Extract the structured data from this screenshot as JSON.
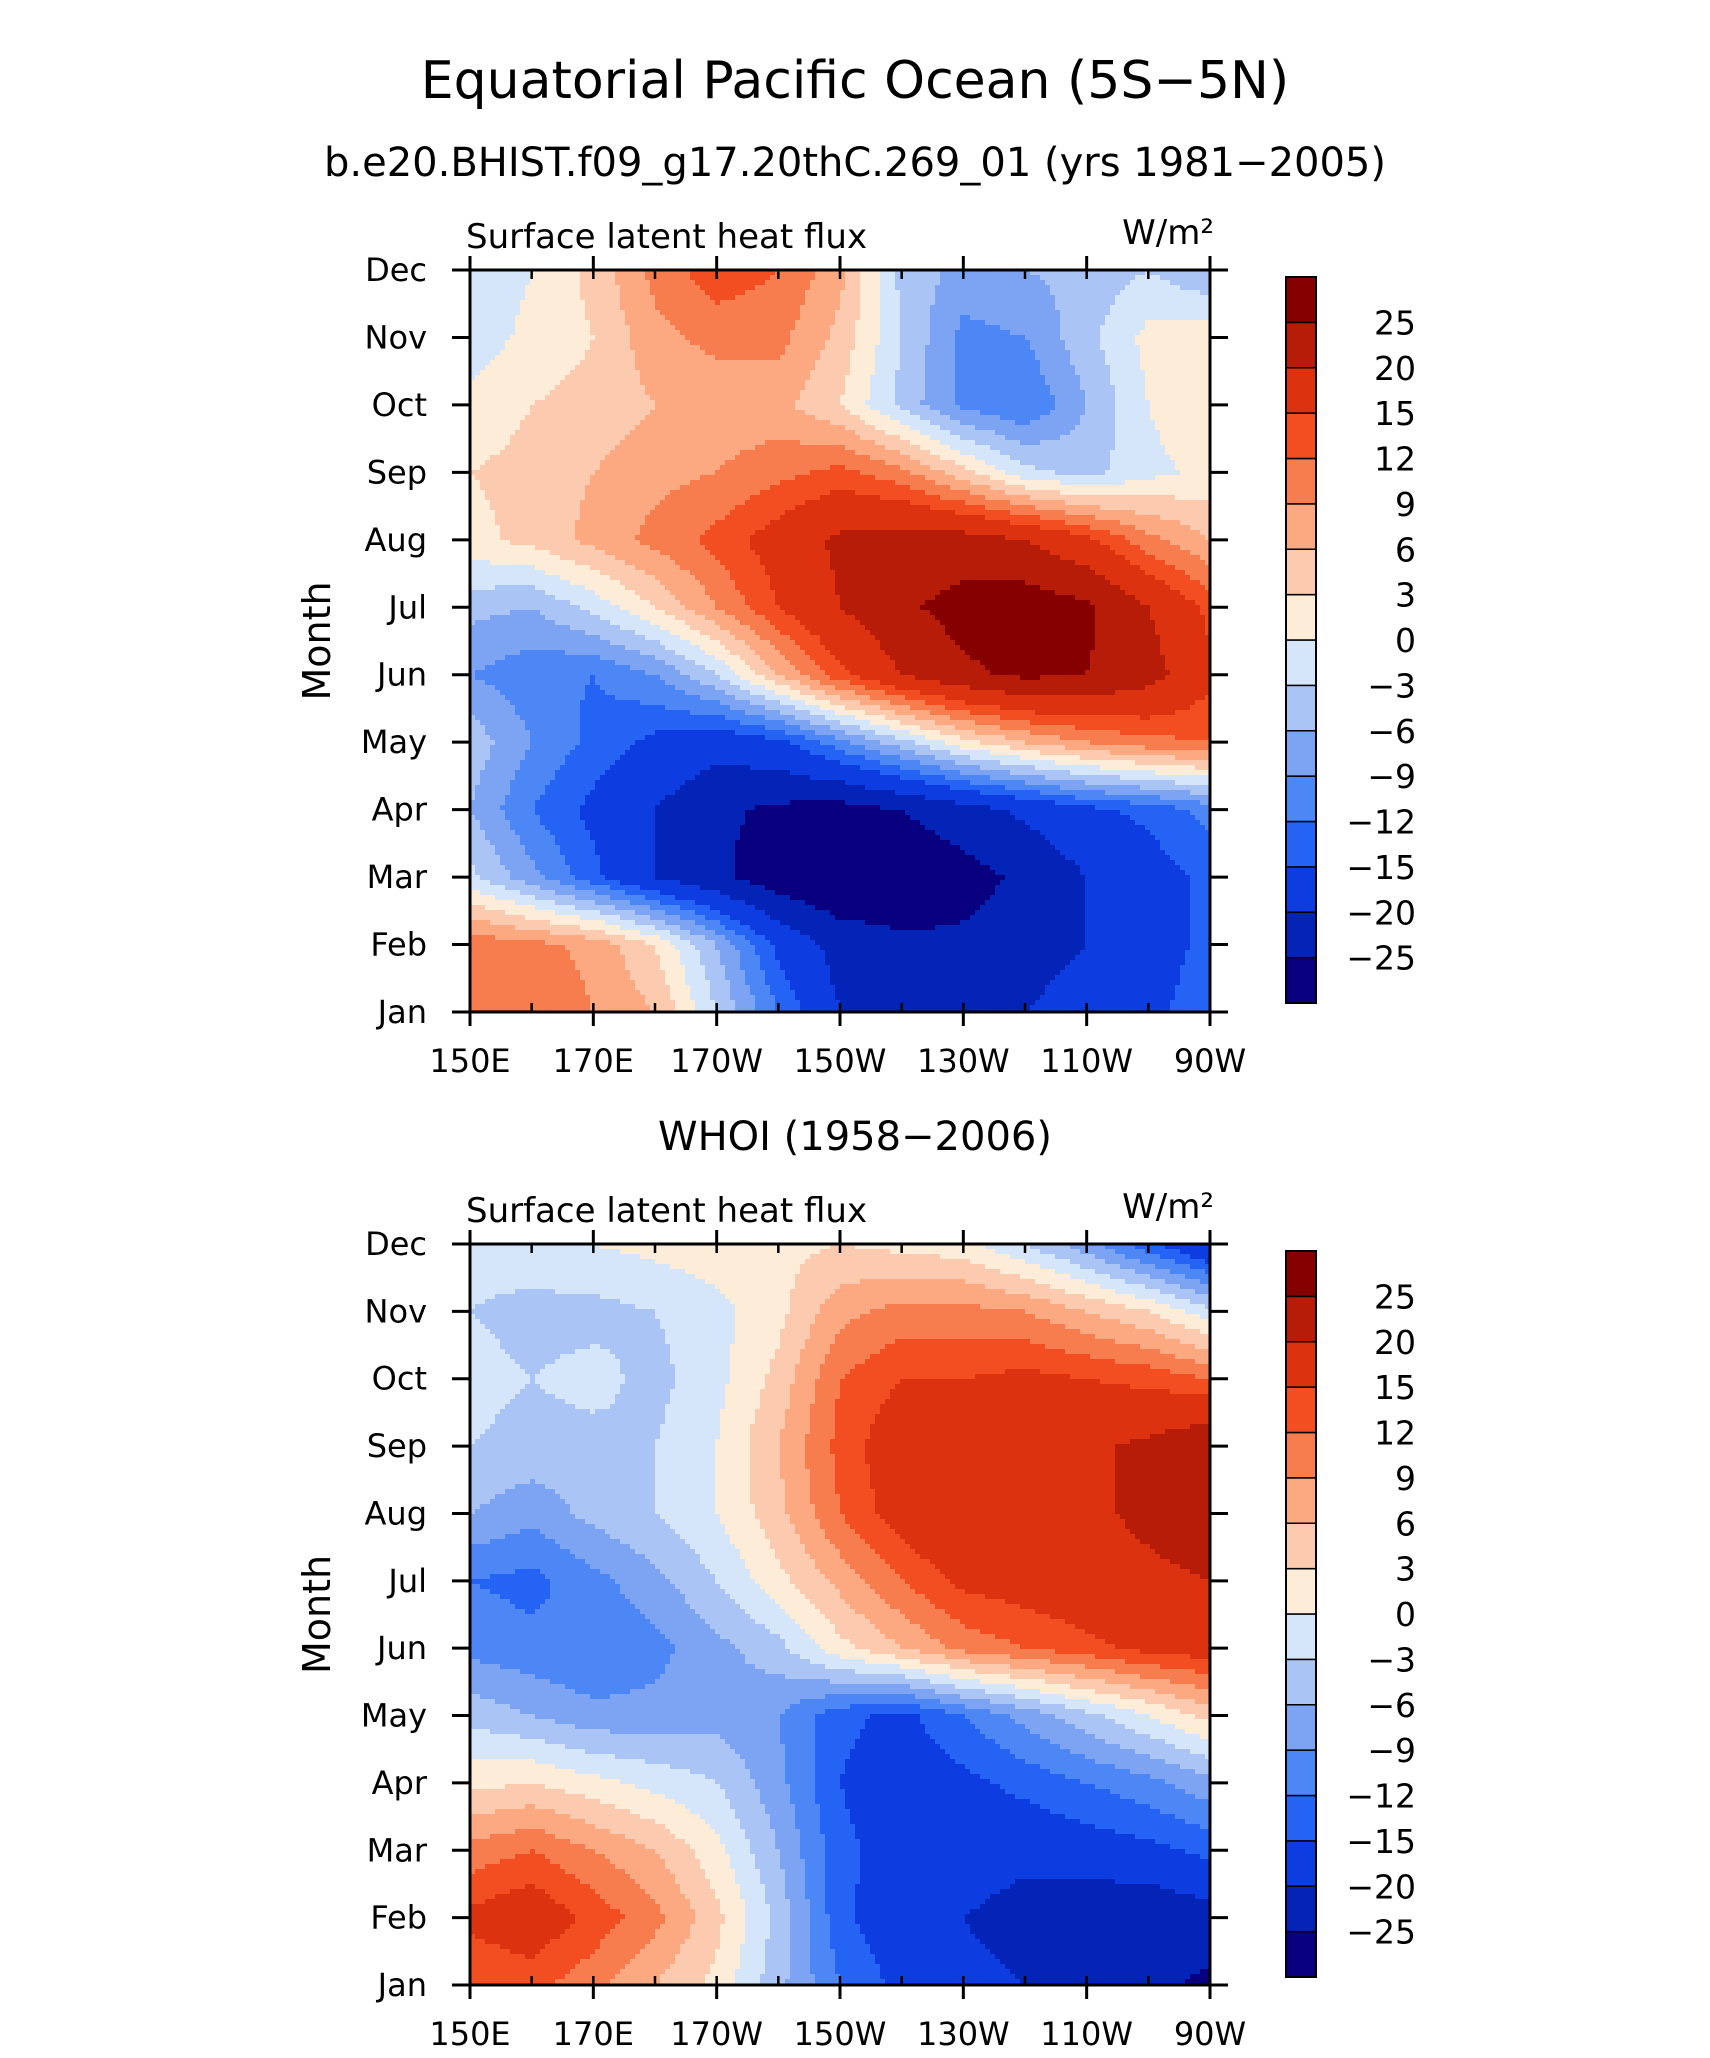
{
  "title": "Equatorial Pacific Ocean (5S−5N)",
  "subtitle": "b.e20.BHIST.f09_g17.20thC.269_01 (yrs 1981−2005)",
  "colors": {
    "levels": [
      "#08007f",
      "#0424b8",
      "#0d3de0",
      "#2563f5",
      "#4d87f5",
      "#7da4f2",
      "#a9c4f5",
      "#d5e6fa",
      "#fdecd8",
      "#fccbaf",
      "#fca982",
      "#f77c4e",
      "#f24e22",
      "#dc320f",
      "#b71c08",
      "#870000"
    ]
  },
  "chart_data": [
    {
      "type": "heatmap",
      "title": "",
      "left_label": "Surface latent heat flux",
      "units": "W/m²",
      "xlabel": "",
      "ylabel": "Month",
      "x_ticks": [
        "150E",
        "170E",
        "170W",
        "150W",
        "130W",
        "110W",
        "90W"
      ],
      "x": [
        150,
        160,
        170,
        180,
        190,
        200,
        210,
        220,
        230,
        240,
        250,
        260,
        270
      ],
      "y_ticks": [
        "Jan",
        "Feb",
        "Mar",
        "Apr",
        "May",
        "Jun",
        "Jul",
        "Aug",
        "Sep",
        "Oct",
        "Nov",
        "Dec"
      ],
      "levels": [
        -25,
        -20,
        -15,
        -12,
        -9,
        -6,
        -3,
        0,
        3,
        6,
        9,
        12,
        15,
        20,
        25
      ],
      "colorbar_labels": [
        "25",
        "20",
        "15",
        "12",
        "9",
        "6",
        "3",
        "0",
        "−3",
        "−6",
        "−9",
        "−12",
        "−15",
        "−20",
        "−25"
      ],
      "z": [
        [
          12,
          12,
          9,
          6,
          -3,
          -12,
          -20,
          -22,
          -22,
          -20,
          -18,
          -16,
          -13
        ],
        [
          11,
          10,
          8,
          3,
          -6,
          -16,
          -22,
          -24,
          -24,
          -22,
          -20,
          -17,
          -14
        ],
        [
          -2,
          -8,
          -14,
          -20,
          -24,
          -28,
          -30,
          -29,
          -27,
          -24,
          -20,
          -17,
          -14
        ],
        [
          -6,
          -12,
          -16,
          -20,
          -24,
          -26,
          -27,
          -25,
          -22,
          -19,
          -16,
          -14,
          -11
        ],
        [
          -4,
          -9,
          -13,
          -16,
          -18,
          -16,
          -10,
          -4,
          2,
          6,
          9,
          11,
          12
        ],
        [
          -9,
          -11,
          -12,
          -9,
          -3,
          6,
          14,
          20,
          24,
          26,
          25,
          22,
          16
        ],
        [
          -5,
          -6,
          -2,
          3,
          9,
          15,
          20,
          24,
          27,
          28,
          26,
          20,
          14
        ],
        [
          2,
          4,
          7,
          10,
          13,
          17,
          21,
          22,
          22,
          20,
          16,
          10,
          6
        ],
        [
          3,
          4,
          6,
          8,
          9,
          11,
          13,
          10,
          4,
          -2,
          -4,
          -1,
          1
        ],
        [
          1,
          3,
          4,
          6,
          7,
          7,
          3,
          -4,
          -10,
          -12,
          -6,
          0,
          3
        ],
        [
          -2,
          1,
          3,
          8,
          10,
          10,
          5,
          -3,
          -10,
          -9,
          -4,
          1,
          2
        ],
        [
          -3,
          0,
          4,
          10,
          14,
          12,
          7,
          -4,
          -7,
          -6,
          -5,
          -3,
          -6
        ]
      ]
    },
    {
      "type": "heatmap",
      "title": "WHOI (1958−2006)",
      "left_label": "Surface latent heat flux",
      "units": "W/m²",
      "xlabel": "",
      "ylabel": "Month",
      "x_ticks": [
        "150E",
        "170E",
        "170W",
        "150W",
        "130W",
        "110W",
        "90W"
      ],
      "x": [
        150,
        160,
        170,
        180,
        190,
        200,
        210,
        220,
        230,
        240,
        250,
        260,
        270
      ],
      "y_ticks": [
        "Jan",
        "Feb",
        "Mar",
        "Apr",
        "May",
        "Jun",
        "Jul",
        "Aug",
        "Sep",
        "Oct",
        "Nov",
        "Dec"
      ],
      "levels": [
        -25,
        -20,
        -15,
        -12,
        -9,
        -6,
        -3,
        0,
        3,
        6,
        9,
        12,
        15,
        20,
        25
      ],
      "colorbar_labels": [
        "25",
        "20",
        "15",
        "12",
        "9",
        "6",
        "3",
        "0",
        "−3",
        "−6",
        "−9",
        "−12",
        "−15",
        "−20",
        "−25"
      ],
      "z": [
        [
          12,
          13,
          10,
          6,
          2,
          -5,
          -12,
          -16,
          -18,
          -20,
          -22,
          -24,
          -26
        ],
        [
          16,
          18,
          14,
          10,
          4,
          -4,
          -14,
          -18,
          -20,
          -23,
          -24,
          -24,
          -22
        ],
        [
          10,
          12,
          9,
          6,
          1,
          -6,
          -14,
          -17,
          -16,
          -18,
          -17,
          -16,
          -14
        ],
        [
          2,
          3,
          1,
          -1,
          -3,
          -8,
          -15,
          -18,
          -16,
          -14,
          -12,
          -10,
          -7
        ],
        [
          -4,
          -6,
          -8,
          -8,
          -7,
          -9,
          -14,
          -16,
          -12,
          -8,
          -4,
          0,
          4
        ],
        [
          -10,
          -11,
          -12,
          -10,
          -7,
          -4,
          2,
          6,
          10,
          12,
          14,
          16,
          17
        ],
        [
          -12,
          -13,
          -10,
          -7,
          -3,
          2,
          7,
          12,
          16,
          17,
          18,
          19,
          20
        ],
        [
          -6,
          -8,
          -5,
          -3,
          0,
          5,
          12,
          17,
          20,
          18,
          19,
          21,
          23
        ],
        [
          -3,
          -4,
          -4,
          -3,
          0,
          6,
          13,
          18,
          18,
          17,
          19,
          21,
          24
        ],
        [
          -2,
          -3,
          -2,
          -4,
          -1,
          4,
          12,
          15,
          15,
          16,
          15,
          14,
          12
        ],
        [
          -3,
          -4,
          -4,
          -3,
          -1,
          2,
          8,
          10,
          10,
          9,
          6,
          3,
          -2
        ],
        [
          -2,
          -1,
          0,
          1,
          2,
          2,
          3,
          2,
          1,
          -3,
          -8,
          -14,
          -20
        ]
      ]
    }
  ]
}
